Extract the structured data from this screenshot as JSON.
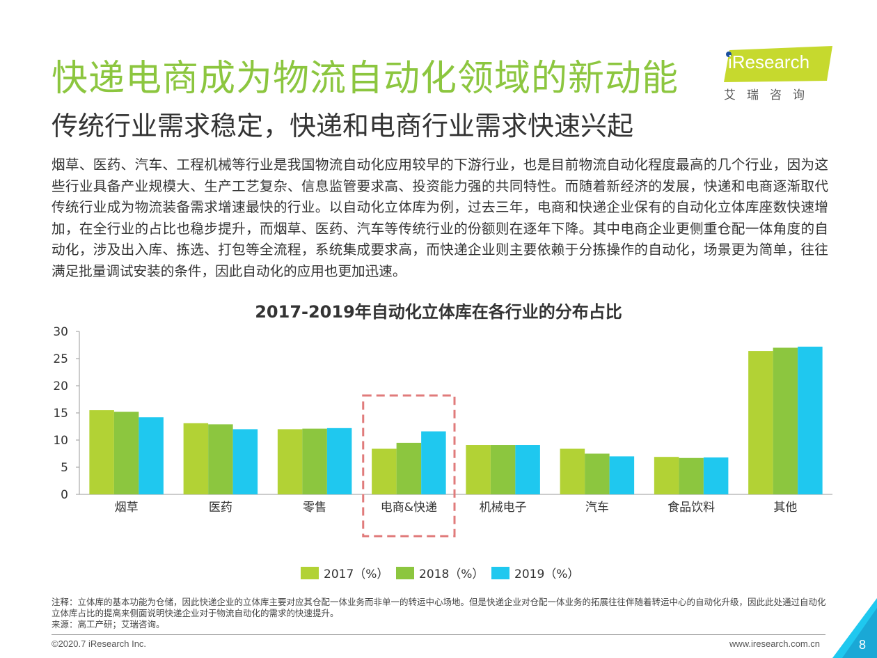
{
  "header": {
    "title": "快递电商成为物流自动化领域的新动能",
    "subtitle": "传统行业需求稳定，快递和电商行业需求快速兴起"
  },
  "logo": {
    "brand": "iResearch",
    "cn": "艾瑞咨询",
    "color": "#c6d92e"
  },
  "body": {
    "paragraph": "烟草、医药、汽车、工程机械等行业是我国物流自动化应用较早的下游行业，也是目前物流自动化程度最高的几个行业，因为这些行业具备产业规模大、生产工艺复杂、信息监管要求高、投资能力强的共同特性。而随着新经济的发展，快递和电商逐渐取代传统行业成为物流装备需求增速最快的行业。以自动化立体库为例，过去三年，电商和快递企业保有的自动化立体库座数快速增加，在全行业的占比也稳步提升，而烟草、医药、汽车等传统行业的份额则在逐年下降。其中电商企业更侧重仓配一体角度的自动化，涉及出入库、拣选、打包等全流程，系统集成要求高，而快递企业则主要依赖于分拣操作的自动化，场景更为简单，往往满足批量调试安装的条件，因此自动化的应用也更加迅速。"
  },
  "chart_data": {
    "type": "bar",
    "title": "2017-2019年自动化立体库在各行业的分布占比",
    "categories": [
      "烟草",
      "医药",
      "零售",
      "电商&快递",
      "机械电子",
      "汽车",
      "食品饮料",
      "其他"
    ],
    "series": [
      {
        "name": "2017（%）",
        "color": "#b2d235",
        "values": [
          15.5,
          13.1,
          12.0,
          8.4,
          9.1,
          8.4,
          6.9,
          26.4
        ]
      },
      {
        "name": "2018（%）",
        "color": "#8cc63f",
        "values": [
          15.2,
          12.9,
          12.1,
          9.5,
          9.1,
          7.5,
          6.7,
          27.0
        ]
      },
      {
        "name": "2019（%）",
        "color": "#1fc8ef",
        "values": [
          14.2,
          12.0,
          12.2,
          11.6,
          9.1,
          7.0,
          6.8,
          27.2
        ]
      }
    ],
    "yticks": [
      0,
      5,
      10,
      15,
      20,
      25,
      30
    ],
    "ylim": [
      0,
      30
    ],
    "highlight_category": "电商&快递",
    "highlight_color": "#e07b7b",
    "legend_position": "bottom",
    "grid": false
  },
  "notes": {
    "note": "注释：立体库的基本功能为仓储，因此快递企业的立体库主要对应其仓配一体业务而非单一的转运中心场地。但是快递企业对仓配一体业务的拓展往往伴随着转运中心的自动化升级，因此此处通过自动化立体库占比的提高来侧面说明快递企业对于物流自动化的需求的快速提升。",
    "source": "来源：高工产研；艾瑞咨询。"
  },
  "footer": {
    "copyright": "©2020.7 iResearch Inc.",
    "website": "www.iresearch.com.cn",
    "page": "8"
  }
}
